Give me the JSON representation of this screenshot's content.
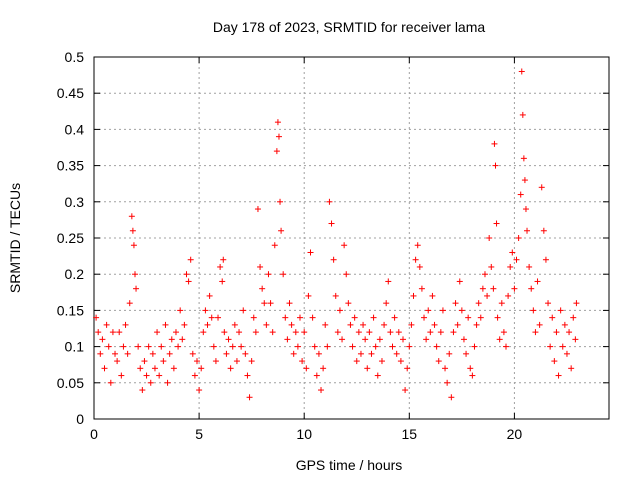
{
  "chart_data": {
    "type": "scatter",
    "title": "Day 178 of 2023, SRMTID for receiver lama",
    "xlabel": "GPS time / hours",
    "ylabel": "SRMTID / TECUs",
    "xlim": [
      0,
      24.5
    ],
    "ylim": [
      0,
      0.5
    ],
    "x_ticks": [
      0,
      5,
      10,
      15,
      20
    ],
    "x_tick_labels": [
      "0",
      "5",
      "10",
      "15",
      "20"
    ],
    "y_ticks": [
      0,
      0.05,
      0.1,
      0.15,
      0.2,
      0.25,
      0.3,
      0.35,
      0.4,
      0.45,
      0.5
    ],
    "y_tick_labels": [
      "0",
      "0.05",
      "0.1",
      "0.15",
      "0.2",
      "0.25",
      "0.3",
      "0.35",
      "0.4",
      "0.45",
      "0.5"
    ],
    "grid": true,
    "marker": "+",
    "marker_color": "#ff0000",
    "series": [
      {
        "name": "SRMTID",
        "points": [
          [
            0.1,
            0.14
          ],
          [
            0.2,
            0.12
          ],
          [
            0.3,
            0.09
          ],
          [
            0.4,
            0.11
          ],
          [
            0.5,
            0.07
          ],
          [
            0.6,
            0.13
          ],
          [
            0.7,
            0.1
          ],
          [
            0.8,
            0.05
          ],
          [
            0.9,
            0.12
          ],
          [
            1.0,
            0.09
          ],
          [
            1.1,
            0.08
          ],
          [
            1.2,
            0.12
          ],
          [
            1.3,
            0.06
          ],
          [
            1.4,
            0.1
          ],
          [
            1.5,
            0.13
          ],
          [
            1.6,
            0.09
          ],
          [
            1.7,
            0.16
          ],
          [
            1.8,
            0.28
          ],
          [
            1.85,
            0.26
          ],
          [
            1.9,
            0.24
          ],
          [
            1.95,
            0.2
          ],
          [
            2.0,
            0.18
          ],
          [
            2.1,
            0.1
          ],
          [
            2.2,
            0.07
          ],
          [
            2.3,
            0.04
          ],
          [
            2.4,
            0.08
          ],
          [
            2.5,
            0.06
          ],
          [
            2.6,
            0.1
          ],
          [
            2.7,
            0.05
          ],
          [
            2.8,
            0.09
          ],
          [
            2.9,
            0.07
          ],
          [
            3.0,
            0.12
          ],
          [
            3.1,
            0.06
          ],
          [
            3.2,
            0.1
          ],
          [
            3.3,
            0.08
          ],
          [
            3.4,
            0.13
          ],
          [
            3.5,
            0.05
          ],
          [
            3.6,
            0.09
          ],
          [
            3.7,
            0.11
          ],
          [
            3.8,
            0.07
          ],
          [
            3.9,
            0.12
          ],
          [
            4.0,
            0.1
          ],
          [
            4.1,
            0.15
          ],
          [
            4.2,
            0.11
          ],
          [
            4.3,
            0.13
          ],
          [
            4.4,
            0.2
          ],
          [
            4.5,
            0.19
          ],
          [
            4.6,
            0.22
          ],
          [
            4.7,
            0.09
          ],
          [
            4.8,
            0.06
          ],
          [
            4.9,
            0.08
          ],
          [
            5.0,
            0.04
          ],
          [
            5.1,
            0.07
          ],
          [
            5.2,
            0.12
          ],
          [
            5.3,
            0.15
          ],
          [
            5.4,
            0.13
          ],
          [
            5.5,
            0.17
          ],
          [
            5.6,
            0.14
          ],
          [
            5.7,
            0.1
          ],
          [
            5.8,
            0.08
          ],
          [
            5.9,
            0.14
          ],
          [
            6.0,
            0.21
          ],
          [
            6.1,
            0.19
          ],
          [
            6.15,
            0.22
          ],
          [
            6.2,
            0.12
          ],
          [
            6.3,
            0.09
          ],
          [
            6.4,
            0.11
          ],
          [
            6.5,
            0.07
          ],
          [
            6.6,
            0.1
          ],
          [
            6.7,
            0.13
          ],
          [
            6.8,
            0.08
          ],
          [
            6.9,
            0.12
          ],
          [
            7.0,
            0.1
          ],
          [
            7.1,
            0.15
          ],
          [
            7.2,
            0.09
          ],
          [
            7.3,
            0.06
          ],
          [
            7.4,
            0.03
          ],
          [
            7.5,
            0.08
          ],
          [
            7.6,
            0.14
          ],
          [
            7.7,
            0.12
          ],
          [
            7.8,
            0.29
          ],
          [
            7.9,
            0.21
          ],
          [
            8.0,
            0.18
          ],
          [
            8.1,
            0.16
          ],
          [
            8.2,
            0.13
          ],
          [
            8.3,
            0.2
          ],
          [
            8.4,
            0.16
          ],
          [
            8.5,
            0.12
          ],
          [
            8.6,
            0.24
          ],
          [
            8.7,
            0.37
          ],
          [
            8.75,
            0.41
          ],
          [
            8.8,
            0.39
          ],
          [
            8.85,
            0.3
          ],
          [
            8.9,
            0.26
          ],
          [
            9.0,
            0.2
          ],
          [
            9.1,
            0.14
          ],
          [
            9.2,
            0.11
          ],
          [
            9.3,
            0.16
          ],
          [
            9.4,
            0.13
          ],
          [
            9.5,
            0.09
          ],
          [
            9.6,
            0.12
          ],
          [
            9.7,
            0.1
          ],
          [
            9.8,
            0.14
          ],
          [
            9.9,
            0.08
          ],
          [
            10.0,
            0.12
          ],
          [
            10.1,
            0.07
          ],
          [
            10.2,
            0.17
          ],
          [
            10.3,
            0.23
          ],
          [
            10.4,
            0.14
          ],
          [
            10.5,
            0.1
          ],
          [
            10.6,
            0.06
          ],
          [
            10.7,
            0.09
          ],
          [
            10.8,
            0.04
          ],
          [
            10.9,
            0.07
          ],
          [
            11.0,
            0.13
          ],
          [
            11.1,
            0.1
          ],
          [
            11.2,
            0.3
          ],
          [
            11.3,
            0.27
          ],
          [
            11.4,
            0.22
          ],
          [
            11.5,
            0.17
          ],
          [
            11.6,
            0.12
          ],
          [
            11.7,
            0.15
          ],
          [
            11.8,
            0.11
          ],
          [
            11.9,
            0.24
          ],
          [
            12.0,
            0.2
          ],
          [
            12.1,
            0.16
          ],
          [
            12.2,
            0.13
          ],
          [
            12.3,
            0.1
          ],
          [
            12.4,
            0.14
          ],
          [
            12.5,
            0.08
          ],
          [
            12.6,
            0.12
          ],
          [
            12.7,
            0.09
          ],
          [
            12.8,
            0.13
          ],
          [
            12.9,
            0.11
          ],
          [
            13.0,
            0.07
          ],
          [
            13.1,
            0.12
          ],
          [
            13.2,
            0.09
          ],
          [
            13.3,
            0.14
          ],
          [
            13.4,
            0.1
          ],
          [
            13.5,
            0.06
          ],
          [
            13.6,
            0.11
          ],
          [
            13.7,
            0.08
          ],
          [
            13.8,
            0.13
          ],
          [
            13.9,
            0.16
          ],
          [
            14.0,
            0.19
          ],
          [
            14.1,
            0.12
          ],
          [
            14.2,
            0.1
          ],
          [
            14.3,
            0.14
          ],
          [
            14.4,
            0.09
          ],
          [
            14.5,
            0.12
          ],
          [
            14.6,
            0.08
          ],
          [
            14.7,
            0.11
          ],
          [
            14.8,
            0.04
          ],
          [
            14.9,
            0.07
          ],
          [
            15.0,
            0.1
          ],
          [
            15.1,
            0.13
          ],
          [
            15.2,
            0.17
          ],
          [
            15.3,
            0.22
          ],
          [
            15.4,
            0.24
          ],
          [
            15.5,
            0.21
          ],
          [
            15.6,
            0.18
          ],
          [
            15.7,
            0.14
          ],
          [
            15.8,
            0.11
          ],
          [
            15.9,
            0.15
          ],
          [
            16.0,
            0.12
          ],
          [
            16.1,
            0.17
          ],
          [
            16.2,
            0.13
          ],
          [
            16.3,
            0.1
          ],
          [
            16.4,
            0.08
          ],
          [
            16.5,
            0.12
          ],
          [
            16.6,
            0.15
          ],
          [
            16.7,
            0.07
          ],
          [
            16.8,
            0.05
          ],
          [
            16.9,
            0.09
          ],
          [
            17.0,
            0.03
          ],
          [
            17.1,
            0.12
          ],
          [
            17.2,
            0.16
          ],
          [
            17.3,
            0.13
          ],
          [
            17.4,
            0.19
          ],
          [
            17.5,
            0.15
          ],
          [
            17.6,
            0.11
          ],
          [
            17.7,
            0.09
          ],
          [
            17.8,
            0.14
          ],
          [
            17.9,
            0.07
          ],
          [
            18.0,
            0.06
          ],
          [
            18.1,
            0.1
          ],
          [
            18.2,
            0.13
          ],
          [
            18.3,
            0.16
          ],
          [
            18.4,
            0.14
          ],
          [
            18.5,
            0.18
          ],
          [
            18.6,
            0.2
          ],
          [
            18.7,
            0.17
          ],
          [
            18.8,
            0.25
          ],
          [
            18.9,
            0.21
          ],
          [
            19.0,
            0.18
          ],
          [
            19.05,
            0.38
          ],
          [
            19.1,
            0.35
          ],
          [
            19.15,
            0.27
          ],
          [
            19.2,
            0.14
          ],
          [
            19.3,
            0.11
          ],
          [
            19.4,
            0.16
          ],
          [
            19.5,
            0.12
          ],
          [
            19.6,
            0.1
          ],
          [
            19.7,
            0.17
          ],
          [
            19.8,
            0.21
          ],
          [
            19.9,
            0.23
          ],
          [
            20.0,
            0.18
          ],
          [
            20.1,
            0.22
          ],
          [
            20.2,
            0.25
          ],
          [
            20.3,
            0.31
          ],
          [
            20.35,
            0.48
          ],
          [
            20.4,
            0.42
          ],
          [
            20.45,
            0.36
          ],
          [
            20.5,
            0.33
          ],
          [
            20.55,
            0.29
          ],
          [
            20.6,
            0.26
          ],
          [
            20.7,
            0.21
          ],
          [
            20.8,
            0.18
          ],
          [
            20.9,
            0.15
          ],
          [
            21.0,
            0.12
          ],
          [
            21.1,
            0.19
          ],
          [
            21.2,
            0.13
          ],
          [
            21.3,
            0.32
          ],
          [
            21.4,
            0.26
          ],
          [
            21.5,
            0.22
          ],
          [
            21.6,
            0.16
          ],
          [
            21.7,
            0.1
          ],
          [
            21.8,
            0.14
          ],
          [
            21.9,
            0.08
          ],
          [
            22.0,
            0.12
          ],
          [
            22.1,
            0.06
          ],
          [
            22.2,
            0.15
          ],
          [
            22.3,
            0.1
          ],
          [
            22.4,
            0.13
          ],
          [
            22.5,
            0.09
          ],
          [
            22.6,
            0.12
          ],
          [
            22.7,
            0.07
          ],
          [
            22.8,
            0.14
          ],
          [
            22.9,
            0.11
          ],
          [
            22.95,
            0.16
          ]
        ]
      }
    ]
  }
}
